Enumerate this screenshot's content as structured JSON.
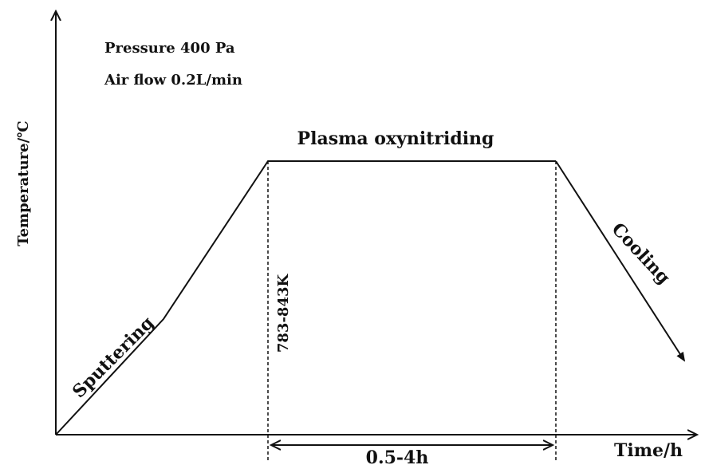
{
  "y_axis_label": "Temperature/℃",
  "x_axis_label": "Time/h",
  "conditions": {
    "pressure": "Pressure 400 Pa",
    "air_flow": "Air flow 0.2L/min"
  },
  "stages": {
    "sputtering": "Sputtering",
    "plasma": "Plasma oxynitriding",
    "cooling": "Cooling"
  },
  "temperature_range": "783-843K",
  "duration": "0.5-4h"
}
